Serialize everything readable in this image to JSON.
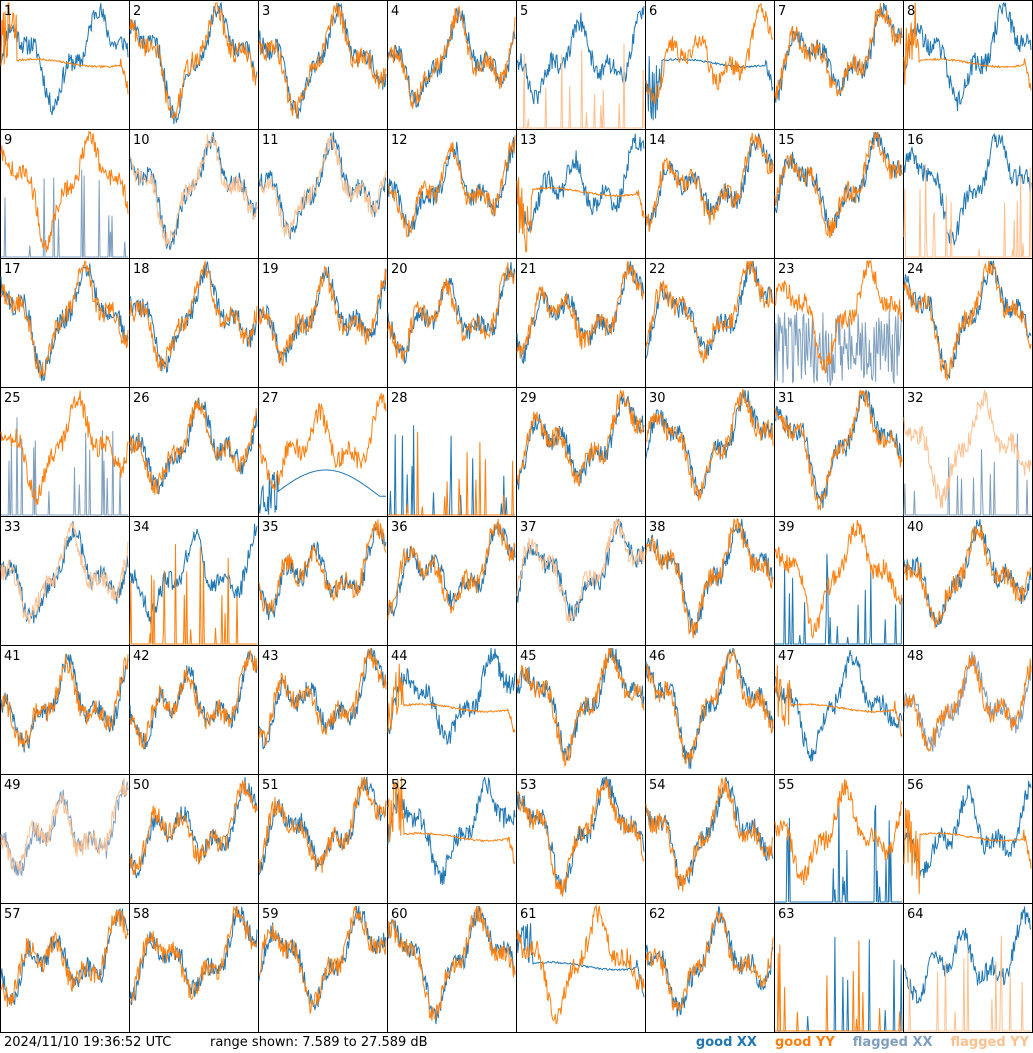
{
  "colors": {
    "good_xx": "#1f77b4",
    "good_yy": "#ff7f0e",
    "flagged_xx": "#7f9fbf",
    "flagged_yy": "#ffc08f"
  },
  "footer": {
    "timestamp": "2024/11/10 19:36:52 UTC",
    "range_text": "range shown: 7.589 to 27.589 dB"
  },
  "legend": [
    {
      "label": "good XX",
      "color": "#1f77b4"
    },
    {
      "label": "good YY",
      "color": "#ff7f0e"
    },
    {
      "label": "flagged XX",
      "color": "#7f9fbf"
    },
    {
      "label": "flagged YY",
      "color": "#ffc08f"
    }
  ],
  "chart_data": {
    "type": "line",
    "grid": {
      "rows": 8,
      "cols": 8
    },
    "ylim": [
      7.589,
      27.589
    ],
    "yunit": "dB",
    "panels": [
      {
        "label": "1",
        "xx": "good",
        "yy": "good",
        "pattern_xx": "normal",
        "pattern_yy": "flatline"
      },
      {
        "label": "2",
        "xx": "good",
        "yy": "good",
        "pattern_xx": "normal",
        "pattern_yy": "normal"
      },
      {
        "label": "3",
        "xx": "good",
        "yy": "good",
        "pattern_xx": "normal",
        "pattern_yy": "normal"
      },
      {
        "label": "4",
        "xx": "good",
        "yy": "good",
        "pattern_xx": "normal",
        "pattern_yy": "normal"
      },
      {
        "label": "5",
        "xx": "good",
        "yy": "flagged",
        "pattern_xx": "normal",
        "pattern_yy": "spikes"
      },
      {
        "label": "6",
        "xx": "good",
        "yy": "good",
        "pattern_xx": "flatline",
        "pattern_yy": "normal"
      },
      {
        "label": "7",
        "xx": "good",
        "yy": "good",
        "pattern_xx": "normal",
        "pattern_yy": "normal"
      },
      {
        "label": "8",
        "xx": "good",
        "yy": "good",
        "pattern_xx": "normal",
        "pattern_yy": "flatline"
      },
      {
        "label": "9",
        "xx": "flagged",
        "yy": "good",
        "pattern_xx": "spikes",
        "pattern_yy": "normal"
      },
      {
        "label": "10",
        "xx": "good",
        "yy": "flagged",
        "pattern_xx": "normal",
        "pattern_yy": "normal"
      },
      {
        "label": "11",
        "xx": "good",
        "yy": "flagged",
        "pattern_xx": "normal",
        "pattern_yy": "normal"
      },
      {
        "label": "12",
        "xx": "good",
        "yy": "good",
        "pattern_xx": "normal",
        "pattern_yy": "normal"
      },
      {
        "label": "13",
        "xx": "good",
        "yy": "good",
        "pattern_xx": "normal",
        "pattern_yy": "flatline"
      },
      {
        "label": "14",
        "xx": "good",
        "yy": "good",
        "pattern_xx": "normal",
        "pattern_yy": "normal"
      },
      {
        "label": "15",
        "xx": "good",
        "yy": "good",
        "pattern_xx": "normal",
        "pattern_yy": "normal"
      },
      {
        "label": "16",
        "xx": "good",
        "yy": "flagged",
        "pattern_xx": "normal",
        "pattern_yy": "spikes"
      },
      {
        "label": "17",
        "xx": "good",
        "yy": "good",
        "pattern_xx": "normal",
        "pattern_yy": "normal"
      },
      {
        "label": "18",
        "xx": "good",
        "yy": "good",
        "pattern_xx": "normal",
        "pattern_yy": "normal"
      },
      {
        "label": "19",
        "xx": "good",
        "yy": "good",
        "pattern_xx": "normal",
        "pattern_yy": "normal"
      },
      {
        "label": "20",
        "xx": "good",
        "yy": "good",
        "pattern_xx": "normal",
        "pattern_yy": "normal"
      },
      {
        "label": "21",
        "xx": "good",
        "yy": "good",
        "pattern_xx": "normal",
        "pattern_yy": "normal"
      },
      {
        "label": "22",
        "xx": "good",
        "yy": "good",
        "pattern_xx": "normal",
        "pattern_yy": "normal"
      },
      {
        "label": "23",
        "xx": "flagged",
        "yy": "good",
        "pattern_xx": "noisy",
        "pattern_yy": "normal"
      },
      {
        "label": "24",
        "xx": "good",
        "yy": "good",
        "pattern_xx": "normal",
        "pattern_yy": "normal"
      },
      {
        "label": "25",
        "xx": "flagged",
        "yy": "good",
        "pattern_xx": "spikes",
        "pattern_yy": "normal"
      },
      {
        "label": "26",
        "xx": "good",
        "yy": "good",
        "pattern_xx": "normal",
        "pattern_yy": "normal"
      },
      {
        "label": "27",
        "xx": "good",
        "yy": "good",
        "pattern_xx": "arc",
        "pattern_yy": "normal"
      },
      {
        "label": "28",
        "xx": "good",
        "yy": "good",
        "pattern_xx": "spikes",
        "pattern_yy": "spikes"
      },
      {
        "label": "29",
        "xx": "good",
        "yy": "good",
        "pattern_xx": "normal",
        "pattern_yy": "normal"
      },
      {
        "label": "30",
        "xx": "good",
        "yy": "good",
        "pattern_xx": "normal",
        "pattern_yy": "normal"
      },
      {
        "label": "31",
        "xx": "good",
        "yy": "good",
        "pattern_xx": "normal",
        "pattern_yy": "normal"
      },
      {
        "label": "32",
        "xx": "flagged",
        "yy": "flagged",
        "pattern_xx": "spikes",
        "pattern_yy": "normal"
      },
      {
        "label": "33",
        "xx": "good",
        "yy": "flagged",
        "pattern_xx": "normal",
        "pattern_yy": "normal"
      },
      {
        "label": "34",
        "xx": "good",
        "yy": "good",
        "pattern_xx": "normal",
        "pattern_yy": "spikes"
      },
      {
        "label": "35",
        "xx": "good",
        "yy": "good",
        "pattern_xx": "normal",
        "pattern_yy": "normal"
      },
      {
        "label": "36",
        "xx": "good",
        "yy": "good",
        "pattern_xx": "normal",
        "pattern_yy": "normal"
      },
      {
        "label": "37",
        "xx": "good",
        "yy": "flagged",
        "pattern_xx": "normal",
        "pattern_yy": "normal"
      },
      {
        "label": "38",
        "xx": "good",
        "yy": "good",
        "pattern_xx": "normal",
        "pattern_yy": "normal"
      },
      {
        "label": "39",
        "xx": "good",
        "yy": "good",
        "pattern_xx": "spikes",
        "pattern_yy": "normal"
      },
      {
        "label": "40",
        "xx": "good",
        "yy": "good",
        "pattern_xx": "normal",
        "pattern_yy": "normal"
      },
      {
        "label": "41",
        "xx": "good",
        "yy": "good",
        "pattern_xx": "normal",
        "pattern_yy": "normal"
      },
      {
        "label": "42",
        "xx": "good",
        "yy": "good",
        "pattern_xx": "normal",
        "pattern_yy": "normal"
      },
      {
        "label": "43",
        "xx": "good",
        "yy": "good",
        "pattern_xx": "normal",
        "pattern_yy": "normal"
      },
      {
        "label": "44",
        "xx": "good",
        "yy": "good",
        "pattern_xx": "normal",
        "pattern_yy": "flatline"
      },
      {
        "label": "45",
        "xx": "good",
        "yy": "good",
        "pattern_xx": "normal",
        "pattern_yy": "normal"
      },
      {
        "label": "46",
        "xx": "good",
        "yy": "good",
        "pattern_xx": "normal",
        "pattern_yy": "normal"
      },
      {
        "label": "47",
        "xx": "good",
        "yy": "good",
        "pattern_xx": "normal",
        "pattern_yy": "flatline"
      },
      {
        "label": "48",
        "xx": "flagged",
        "yy": "good",
        "pattern_xx": "normal",
        "pattern_yy": "normal"
      },
      {
        "label": "49",
        "xx": "flagged",
        "yy": "flagged",
        "pattern_xx": "normal",
        "pattern_yy": "normal"
      },
      {
        "label": "50",
        "xx": "good",
        "yy": "good",
        "pattern_xx": "normal",
        "pattern_yy": "normal"
      },
      {
        "label": "51",
        "xx": "good",
        "yy": "good",
        "pattern_xx": "normal",
        "pattern_yy": "normal"
      },
      {
        "label": "52",
        "xx": "good",
        "yy": "good",
        "pattern_xx": "normal",
        "pattern_yy": "flatline"
      },
      {
        "label": "53",
        "xx": "good",
        "yy": "good",
        "pattern_xx": "normal",
        "pattern_yy": "normal"
      },
      {
        "label": "54",
        "xx": "good",
        "yy": "good",
        "pattern_xx": "normal",
        "pattern_yy": "normal"
      },
      {
        "label": "55",
        "xx": "good",
        "yy": "good",
        "pattern_xx": "spikes",
        "pattern_yy": "normal"
      },
      {
        "label": "56",
        "xx": "good",
        "yy": "good",
        "pattern_xx": "normal",
        "pattern_yy": "flatline"
      },
      {
        "label": "57",
        "xx": "good",
        "yy": "good",
        "pattern_xx": "normal",
        "pattern_yy": "normal"
      },
      {
        "label": "58",
        "xx": "good",
        "yy": "good",
        "pattern_xx": "normal",
        "pattern_yy": "normal"
      },
      {
        "label": "59",
        "xx": "good",
        "yy": "good",
        "pattern_xx": "normal",
        "pattern_yy": "normal"
      },
      {
        "label": "60",
        "xx": "good",
        "yy": "good",
        "pattern_xx": "normal",
        "pattern_yy": "normal"
      },
      {
        "label": "61",
        "xx": "good",
        "yy": "good",
        "pattern_xx": "flatline",
        "pattern_yy": "normal"
      },
      {
        "label": "62",
        "xx": "good",
        "yy": "good",
        "pattern_xx": "normal",
        "pattern_yy": "normal"
      },
      {
        "label": "63",
        "xx": "good",
        "yy": "good",
        "pattern_xx": "spikes",
        "pattern_yy": "spikes"
      },
      {
        "label": "64",
        "xx": "good",
        "yy": "flagged",
        "pattern_xx": "normal",
        "pattern_yy": "spikes"
      }
    ]
  }
}
